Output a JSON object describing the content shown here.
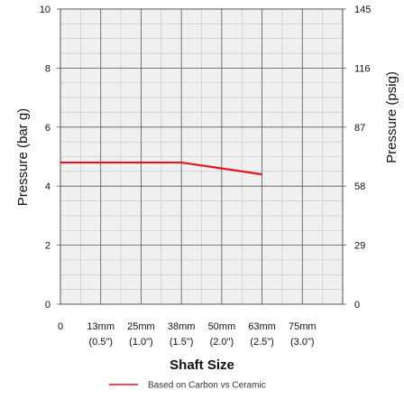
{
  "chart_data": {
    "type": "line",
    "x_categories": [
      {
        "primary": "0",
        "secondary": ""
      },
      {
        "primary": "13mm",
        "secondary": "(0.5\")"
      },
      {
        "primary": "25mm",
        "secondary": "(1.0\")"
      },
      {
        "primary": "38mm",
        "secondary": "(1.5\")"
      },
      {
        "primary": "50mm",
        "secondary": "(2.0\")"
      },
      {
        "primary": "63mm",
        "secondary": "(2.5\")"
      },
      {
        "primary": "75mm",
        "secondary": "(3.0\")"
      }
    ],
    "xlabel": "Shaft Size",
    "ylabel": "Pressure (bar g)",
    "ylabel_right": "Pressure (psig)",
    "ylim": [
      0,
      10
    ],
    "yticks_left": [
      "0",
      "2",
      "4",
      "6",
      "8",
      "10"
    ],
    "yticks_right": [
      "0",
      "29",
      "58",
      "87",
      "116",
      "145"
    ],
    "grid": true,
    "legend_position": "bottom-center",
    "series": [
      {
        "name": "Based on Carbon vs Ceramic",
        "color": "#e0181f",
        "points": [
          {
            "x": "0",
            "y": 4.8
          },
          {
            "x": "38mm",
            "y": 4.8
          },
          {
            "x": "63mm",
            "y": 4.4
          }
        ]
      }
    ]
  }
}
